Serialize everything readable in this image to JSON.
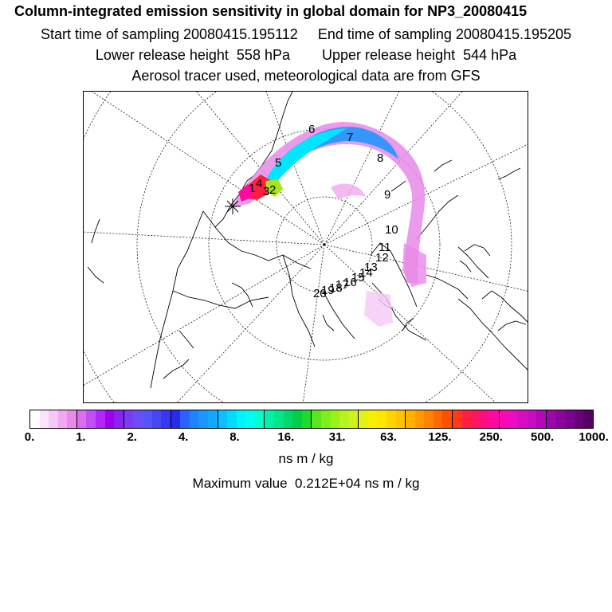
{
  "header": {
    "title": "Column-integrated emission sensitivity in global domain for NP3_20080415",
    "line_time": "Start time of sampling 20080415.195112     End time of sampling 20080415.195205",
    "line_height": "Lower release height  558 hPa        Upper release height  544 hPa",
    "line_info": "Aerosol tracer used, meteorological data are from GFS"
  },
  "map": {
    "projection": "polar-stereographic",
    "release_marker": "asterisk",
    "day_labels": [
      "1",
      "2",
      "3",
      "4",
      "5",
      "6",
      "7",
      "8",
      "9",
      "10",
      "11",
      "12",
      "13",
      "14",
      "15",
      "16",
      "17",
      "18",
      "19",
      "20"
    ]
  },
  "colorbar": {
    "tick_labels": [
      "0.",
      "1.",
      "2.",
      "4.",
      "8.",
      "16.",
      "31.",
      "63.",
      "125.",
      "250.",
      "500.",
      "1000."
    ],
    "colors": [
      "#ffffff",
      "#fbe4fb",
      "#f5c8f5",
      "#f0a8f0",
      "#e98ae9",
      "#d96fee",
      "#c44ef5",
      "#b127f7",
      "#9c00ee",
      "#8a22f2",
      "#7a3cf2",
      "#6a4ef5",
      "#5555f7",
      "#4646f5",
      "#3737f2",
      "#2a2aef",
      "#2a62ff",
      "#1f82ff",
      "#1a96ff",
      "#12a8ff",
      "#0cc0ff",
      "#00dcff",
      "#00f4ff",
      "#00ffee",
      "#00ffcc",
      "#00f0a8",
      "#00e886",
      "#00d869",
      "#00cf4a",
      "#22d82a",
      "#5ae61e",
      "#7df01a",
      "#9af21a",
      "#b8f31f",
      "#d0f218",
      "#e4f116",
      "#f8f000",
      "#ffe600",
      "#ffd500",
      "#ffc300",
      "#ffb000",
      "#ff9a00",
      "#ff8200",
      "#ff6a00",
      "#ff5000",
      "#ff3a1a",
      "#ff2040",
      "#ff1462",
      "#ff0c84",
      "#ff0aa0",
      "#f908b4",
      "#ea0cc0",
      "#d80cc4",
      "#c60cc4",
      "#b208b8",
      "#9e06ac",
      "#8c049e",
      "#7a028e",
      "#680278",
      "#540064"
    ],
    "unit": "ns m / kg"
  },
  "footer": {
    "max_value": "Maximum value  0.212E+04 ns m / kg"
  }
}
